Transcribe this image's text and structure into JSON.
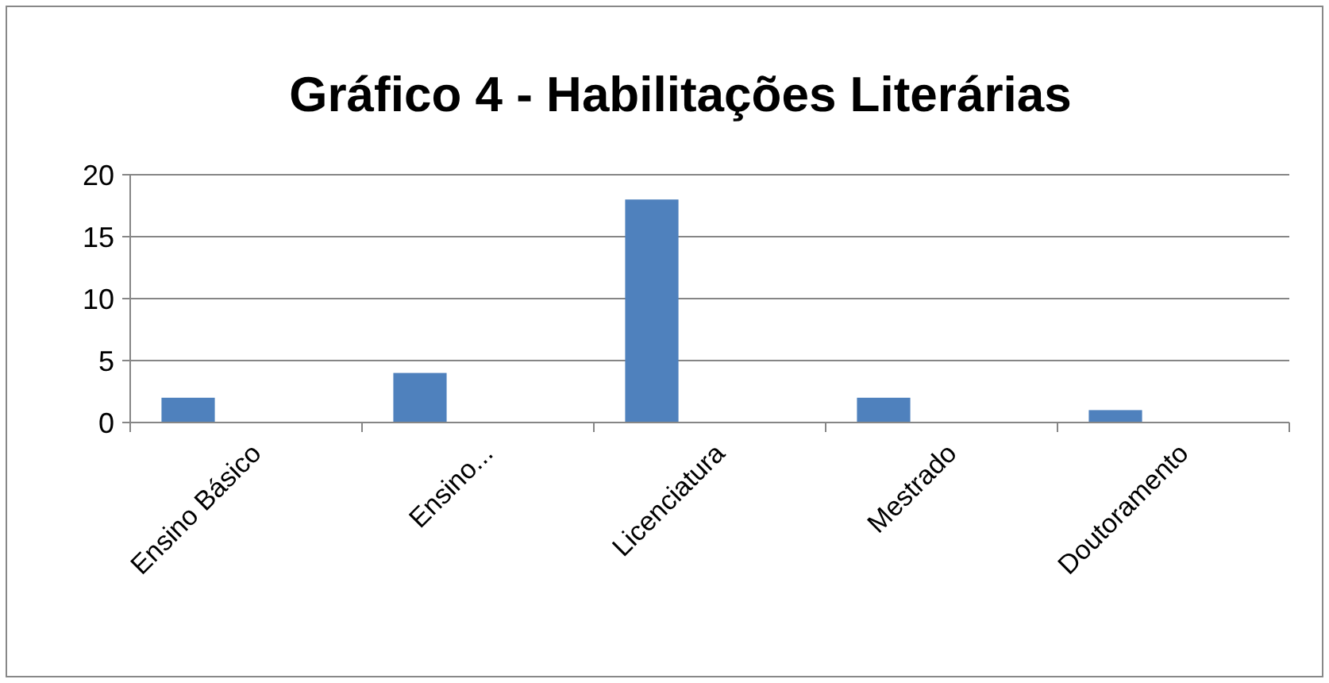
{
  "chart_data": {
    "type": "bar",
    "title": "Gráfico 4 - Habilitações Literárias",
    "categories": [
      "Ensino Básico",
      "Ensino...",
      "Licenciatura",
      "Mestrado",
      "Doutoramento"
    ],
    "values": [
      2,
      4,
      18,
      2,
      1
    ],
    "color": "#4f81bd",
    "ylim": [
      0,
      20
    ],
    "yticks": [
      0,
      5,
      10,
      15,
      20
    ],
    "grid": "y"
  }
}
